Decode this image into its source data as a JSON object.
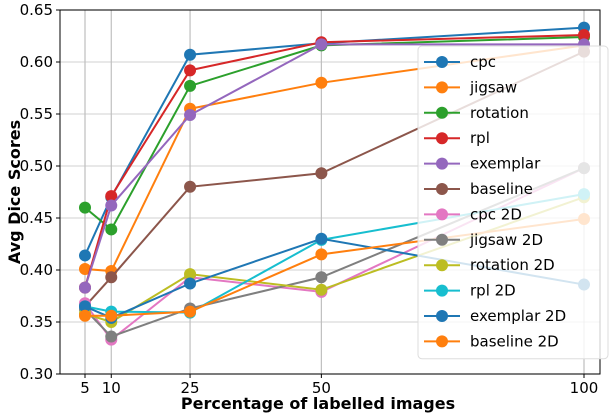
{
  "chart_data": {
    "type": "line",
    "title": "",
    "xlabel": "Percentage of labelled images",
    "ylabel": "Avg Dice Scores",
    "x": [
      5,
      10,
      25,
      50,
      100
    ],
    "xticks": [
      "5",
      "10",
      "25",
      "50",
      "100"
    ],
    "yticks": [
      "0.30",
      "0.35",
      "0.40",
      "0.45",
      "0.50",
      "0.55",
      "0.60",
      "0.65"
    ],
    "ylim": [
      0.3,
      0.65
    ],
    "xlim": [
      0,
      103
    ],
    "grid": true,
    "legend_position": "right",
    "series": [
      {
        "name": "cpc",
        "color": "#1f77b4",
        "values": [
          0.414,
          0.47,
          0.607,
          0.618,
          0.633
        ]
      },
      {
        "name": "jigsaw",
        "color": "#ff7f0e",
        "values": [
          0.401,
          0.399,
          0.555,
          0.58,
          0.616
        ]
      },
      {
        "name": "rotation",
        "color": "#2ca02c",
        "values": [
          0.46,
          0.439,
          0.577,
          0.616,
          0.624
        ]
      },
      {
        "name": "rpl",
        "color": "#d62728",
        "values": [
          0.383,
          0.471,
          0.592,
          0.619,
          0.626
        ]
      },
      {
        "name": "exemplar",
        "color": "#9467bd",
        "values": [
          0.383,
          0.462,
          0.549,
          0.617,
          0.617
        ]
      },
      {
        "name": "baseline",
        "color": "#8c564b",
        "values": [
          0.365,
          0.393,
          0.48,
          0.493,
          0.61
        ]
      },
      {
        "name": "cpc 2D",
        "color": "#e377c2",
        "values": [
          0.368,
          0.333,
          0.393,
          0.379,
          0.498
        ]
      },
      {
        "name": "jigsaw 2D",
        "color": "#7f7f7f",
        "values": [
          0.362,
          0.336,
          0.363,
          0.393,
          0.498
        ]
      },
      {
        "name": "rotation 2D",
        "color": "#bcbd22",
        "values": [
          0.358,
          0.35,
          0.396,
          0.381,
          0.47
        ]
      },
      {
        "name": "rpl 2D",
        "color": "#17becf",
        "values": [
          0.365,
          0.36,
          0.359,
          0.429,
          0.473
        ]
      },
      {
        "name": "exemplar 2D",
        "color": "#1f77b4",
        "values": [
          0.365,
          0.354,
          0.387,
          0.43,
          0.386
        ]
      },
      {
        "name": "baseline 2D",
        "color": "#ff7f0e",
        "values": [
          0.356,
          0.356,
          0.36,
          0.415,
          0.449
        ]
      }
    ]
  }
}
